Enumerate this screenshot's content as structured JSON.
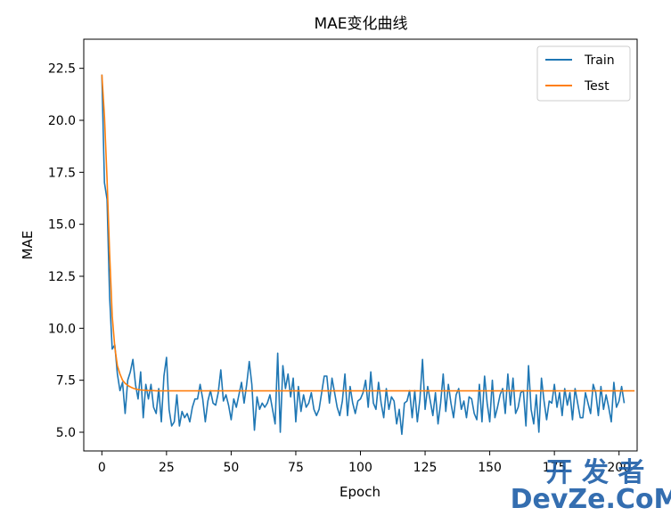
{
  "chart_data": {
    "type": "line",
    "title": "MAE变化曲线",
    "xlabel": "Epoch",
    "ylabel": "MAE",
    "xlim": [
      -7,
      207
    ],
    "ylim": [
      4.1,
      23.9
    ],
    "xticks": [
      0,
      25,
      50,
      75,
      100,
      125,
      150,
      175,
      200
    ],
    "yticks": [
      5.0,
      7.5,
      10.0,
      12.5,
      15.0,
      17.5,
      20.0,
      22.5
    ],
    "ytick_labels": [
      "5.0",
      "7.5",
      "10.0",
      "12.5",
      "15.0",
      "17.5",
      "20.0",
      "22.5"
    ],
    "legend_position": "top-right",
    "grid": false,
    "series": [
      {
        "name": "Train",
        "color": "#1f77b4",
        "values": [
          22.2,
          17.0,
          16.2,
          11.5,
          9.0,
          9.2,
          7.8,
          7.0,
          7.4,
          5.9,
          7.5,
          7.9,
          8.5,
          7.3,
          6.6,
          7.9,
          5.7,
          7.3,
          6.6,
          7.3,
          6.2,
          5.9,
          7.1,
          5.5,
          7.7,
          8.6,
          6.1,
          5.3,
          5.5,
          6.8,
          5.3,
          6.0,
          5.7,
          5.9,
          5.5,
          6.2,
          6.6,
          6.6,
          7.3,
          6.6,
          5.5,
          6.5,
          7.0,
          6.4,
          6.3,
          6.9,
          8.0,
          6.5,
          6.8,
          6.3,
          5.6,
          6.6,
          6.2,
          6.8,
          7.4,
          6.4,
          7.3,
          8.4,
          7.3,
          5.1,
          6.7,
          6.1,
          6.4,
          6.2,
          6.4,
          6.8,
          6.1,
          5.4,
          8.8,
          5.0,
          8.2,
          7.1,
          7.8,
          6.7,
          7.6,
          5.5,
          7.2,
          6.0,
          6.8,
          6.2,
          6.4,
          6.9,
          6.1,
          5.8,
          6.1,
          6.9,
          7.7,
          7.7,
          6.4,
          7.6,
          6.9,
          6.2,
          5.8,
          6.5,
          7.8,
          5.8,
          7.2,
          6.4,
          5.9,
          6.5,
          6.6,
          6.9,
          7.5,
          6.2,
          7.9,
          6.4,
          6.1,
          7.4,
          6.4,
          5.7,
          7.1,
          6.1,
          6.7,
          6.5,
          5.4,
          6.1,
          4.9,
          6.4,
          6.5,
          7.0,
          5.7,
          7.0,
          5.5,
          6.6,
          8.5,
          6.1,
          7.2,
          6.5,
          5.8,
          6.9,
          5.4,
          6.4,
          7.8,
          6.0,
          7.3,
          6.4,
          5.7,
          6.8,
          7.1,
          6.1,
          6.5,
          5.7,
          6.7,
          6.6,
          5.9,
          5.6,
          7.3,
          5.5,
          7.7,
          6.4,
          5.5,
          7.5,
          5.7,
          6.2,
          6.8,
          7.1,
          5.9,
          7.8,
          6.3,
          7.6,
          5.9,
          6.2,
          6.9,
          7.0,
          5.3,
          8.2,
          6.1,
          5.4,
          6.8,
          5.0,
          7.6,
          6.5,
          5.6,
          6.5,
          6.4,
          7.3,
          6.2,
          6.9,
          5.8,
          7.1,
          6.3,
          6.9,
          5.6,
          7.1,
          6.4,
          5.7,
          5.7,
          6.9,
          6.4,
          5.9,
          7.3,
          6.9,
          5.8,
          7.2,
          6.1,
          6.8,
          6.2,
          5.5,
          7.4,
          6.2,
          6.5,
          7.2,
          6.4
        ]
      },
      {
        "name": "Test",
        "color": "#ff7f0e",
        "values": [
          22.2,
          20.2,
          17.2,
          13.6,
          10.6,
          9.1,
          8.2,
          7.8,
          7.5,
          7.35,
          7.25,
          7.18,
          7.12,
          7.08,
          7.05,
          7.03,
          7.02,
          7.01,
          7.0,
          7.0,
          7.0,
          6.99,
          6.99,
          6.99,
          6.99,
          6.99,
          6.99,
          6.99,
          6.99,
          6.99,
          6.99,
          6.99,
          6.99,
          6.99,
          6.99,
          6.99,
          6.99,
          6.99,
          6.99,
          6.99,
          6.99,
          6.99,
          6.99,
          6.99,
          6.99,
          6.99,
          6.99,
          6.99,
          6.99,
          6.99,
          6.99,
          6.99,
          6.99,
          6.99,
          6.99,
          6.99,
          6.99,
          6.99,
          6.99,
          6.99,
          6.99,
          6.99,
          6.99,
          6.99,
          6.99,
          6.99,
          6.99,
          6.99,
          6.99,
          6.99,
          6.99,
          6.99,
          6.99,
          6.99,
          6.99,
          6.99,
          6.99,
          6.99,
          6.99,
          6.99,
          6.99,
          6.99,
          6.99,
          6.99,
          6.99,
          6.99,
          6.99,
          6.99,
          6.99,
          6.99,
          6.99,
          6.99,
          6.99,
          6.99,
          6.99,
          6.99,
          6.99,
          6.99,
          6.99,
          6.99,
          6.99,
          6.99,
          6.99,
          6.99,
          6.99,
          6.99,
          6.99,
          6.99,
          6.99,
          6.99,
          6.99,
          6.99,
          6.99,
          6.99,
          6.99,
          6.99,
          6.99,
          6.99,
          6.99,
          6.99,
          6.99,
          6.99,
          6.99,
          6.99,
          6.99,
          6.99,
          6.99,
          6.99,
          6.99,
          6.99,
          6.99,
          6.99,
          6.99,
          6.99,
          6.99,
          6.99,
          6.99,
          6.99,
          6.99,
          6.99,
          6.99,
          6.99,
          6.99,
          6.99,
          6.99,
          6.99,
          6.99,
          6.99,
          6.99,
          6.99,
          6.99,
          6.99,
          6.99,
          6.99,
          6.99,
          6.99,
          6.99,
          6.99,
          6.99,
          6.99,
          6.99,
          6.99,
          6.99,
          6.99,
          6.99,
          6.99,
          6.99,
          6.99,
          6.99,
          6.99,
          6.99,
          6.99,
          6.99,
          6.99,
          6.99,
          6.99,
          6.99,
          6.99,
          6.99,
          6.99,
          6.99,
          6.99,
          6.99,
          6.99,
          6.99,
          6.99,
          6.99,
          6.99,
          6.99,
          6.99,
          6.99,
          6.99,
          6.99,
          6.99,
          6.99,
          6.99,
          6.99,
          6.99,
          6.99,
          6.99,
          6.99,
          6.99,
          6.99,
          6.99,
          6.99,
          6.99,
          6.99
        ]
      }
    ]
  },
  "watermark": {
    "line1": "开 发 者",
    "line2": "DevZe.CoM",
    "color": "#1f5fa8"
  }
}
